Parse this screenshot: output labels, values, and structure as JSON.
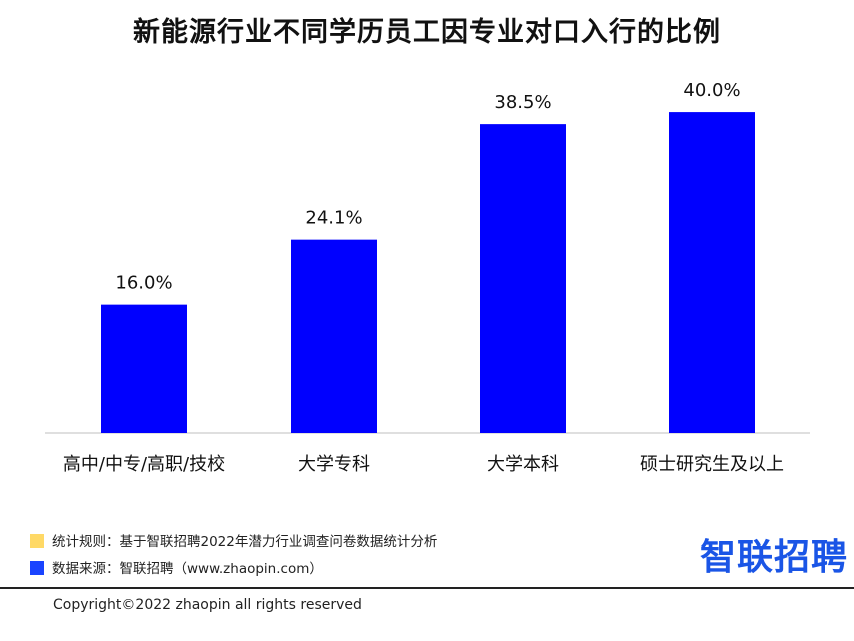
{
  "chart_data": {
    "type": "bar",
    "title": "新能源行业不同学历员工因专业对口入行的比例",
    "categories": [
      "高中/中专/高职/技校",
      "大学专科",
      "大学本科",
      "硕士研究生及以上"
    ],
    "values": [
      16.0,
      24.1,
      38.5,
      40.0
    ],
    "value_labels": [
      "16.0%",
      "24.1%",
      "38.5%",
      "40.0%"
    ],
    "ylim": [
      0,
      44
    ],
    "grid": false,
    "bar_color": "#0000ff"
  },
  "footer": {
    "rule_label": "统计规则：基于智联招聘2022年潜力行业调查问卷数据统计分析",
    "source_label": "数据来源：智联招聘（www.zhaopin.com）",
    "rule_color": "#ffd966",
    "source_color": "#1a44ff",
    "logo_text": "智联招聘",
    "copyright": "Copyright©2022 zhaopin all rights reserved"
  }
}
